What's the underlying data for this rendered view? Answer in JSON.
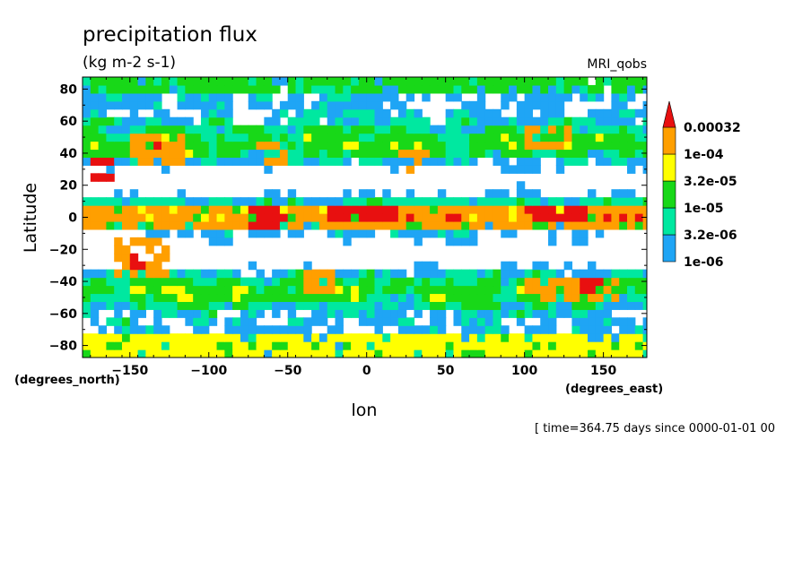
{
  "chart_data": {
    "type": "heatmap",
    "title": "precipitation flux",
    "units": "(kg m-2 s-1)",
    "dataset_label": "MRI_qobs",
    "xlabel": "lon",
    "ylabel": "Latitude",
    "x_unit_label": "(degrees_east)",
    "y_unit_label": "(degrees_north)",
    "xlim": [
      -180,
      177.5
    ],
    "ylim": [
      -87.5,
      87.5
    ],
    "x_ticks": [
      -150,
      -100,
      -50,
      0,
      50,
      100,
      150
    ],
    "y_ticks": [
      -80,
      -60,
      -40,
      -20,
      0,
      20,
      40,
      60,
      80
    ],
    "x_tick_labels": [
      "−150",
      "−100",
      "−50",
      "0",
      "50",
      "100",
      "150"
    ],
    "y_tick_labels": [
      "−80",
      "−60",
      "−40",
      "−20",
      "0",
      "20",
      "40",
      "60",
      "80"
    ],
    "time_label": "[ time=364.75 days since 0000-01-01 00",
    "color_levels": [
      "1e-06",
      "3.2e-06",
      "1e-05",
      "3.2e-05",
      "1e-04",
      "0.00032"
    ],
    "level_values": [
      1e-06,
      3.2e-06,
      1e-05,
      3.2e-05,
      0.0001,
      0.00032
    ],
    "colors": [
      "#1fa5f5",
      "#00e8a0",
      "#18d818",
      "#ffff00",
      "#ff9f00",
      "#e81010"
    ],
    "regions": [
      {
        "lon": [
          -180,
          177.5
        ],
        "lat": [
          -5,
          8
        ],
        "level": 4
      },
      {
        "lon": [
          -75,
          -50
        ],
        "lat": [
          -8,
          5
        ],
        "level": 5
      },
      {
        "lon": [
          -25,
          20
        ],
        "lat": [
          -2,
          6
        ],
        "level": 5
      },
      {
        "lon": [
          100,
          140
        ],
        "lat": [
          -3,
          5
        ],
        "level": 5
      },
      {
        "lon": [
          155,
          175
        ],
        "lat": [
          -3,
          4
        ],
        "level": 5
      },
      {
        "lon": [
          -160,
          -125
        ],
        "lat": [
          -35,
          -15
        ],
        "level": 4
      },
      {
        "lon": [
          -150,
          -140
        ],
        "lat": [
          -30,
          -20
        ],
        "level": 5
      },
      {
        "lon": [
          -175,
          -160
        ],
        "lat": [
          25,
          35
        ],
        "level": 5
      },
      {
        "lon": [
          -150,
          -115
        ],
        "lat": [
          35,
          50
        ],
        "level": 4
      },
      {
        "lon": [
          -140,
          -130
        ],
        "lat": [
          42,
          48
        ],
        "level": 5
      },
      {
        "lon": [
          -70,
          -50
        ],
        "lat": [
          35,
          45
        ],
        "level": 4
      },
      {
        "lon": [
          20,
          40
        ],
        "lat": [
          30,
          40
        ],
        "level": 4
      },
      {
        "lon": [
          100,
          130
        ],
        "lat": [
          45,
          55
        ],
        "level": 4
      },
      {
        "lon": [
          -40,
          -20
        ],
        "lat": [
          -45,
          -35
        ],
        "level": 4
      },
      {
        "lon": [
          100,
          160
        ],
        "lat": [
          -50,
          -40
        ],
        "level": 4
      },
      {
        "lon": [
          135,
          150
        ],
        "lat": [
          -45,
          -38
        ],
        "level": 5
      },
      {
        "lon": [
          -180,
          177.5
        ],
        "lat": [
          -87.5,
          -75
        ],
        "level": 3
      },
      {
        "lon": [
          -180,
          177.5
        ],
        "lat": [
          78,
          87.5
        ],
        "level": 2
      }
    ]
  }
}
